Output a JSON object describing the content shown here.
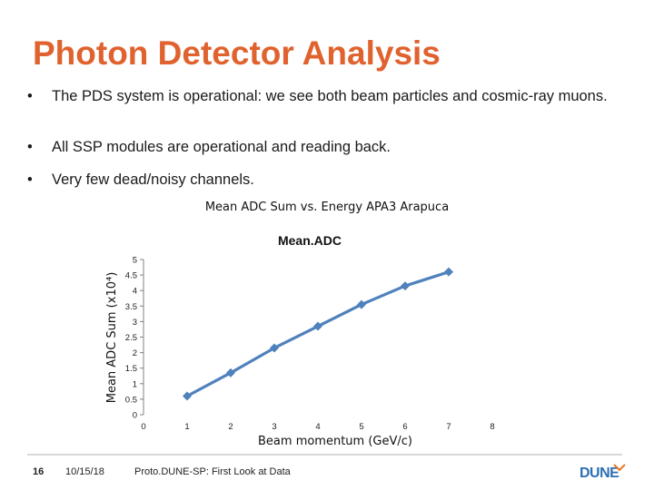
{
  "slide": {
    "title": "Photon Detector Analysis",
    "bullets": [
      "The PDS system is operational: we see both beam particles and cosmic-ray muons.",
      "All SSP modules are operational and reading back.",
      "Very few dead/noisy channels."
    ],
    "bullet_symbol": "•",
    "chart_caption": "Mean ADC Sum vs. Energy APA3 Arapuca"
  },
  "footer": {
    "page_number": "16",
    "date": "10/15/18",
    "text": "Proto.DUNE-SP: First Look at Data",
    "logo_text": "DUNE"
  },
  "colors": {
    "title": "#e0622e",
    "series": "#4f81bd",
    "logo_blue": "#2e6fb3",
    "logo_orange": "#e87722"
  },
  "chart_data": {
    "type": "line",
    "title": "Mean.ADC",
    "xlabel": "Beam momentum (GeV/c)",
    "ylabel": "Mean ADC Sum (x10⁴)",
    "xlim": [
      0,
      8
    ],
    "ylim": [
      0,
      5
    ],
    "xticks": [
      "0",
      "1",
      "2",
      "3",
      "4",
      "5",
      "6",
      "7",
      "8"
    ],
    "yticks": [
      "0",
      "0.5",
      "1",
      "1.5",
      "2",
      "2.5",
      "3",
      "3.5",
      "4",
      "4.5",
      "5"
    ],
    "grid": false,
    "legend": "none",
    "series": [
      {
        "x": [
          1,
          2,
          3,
          4,
          5,
          6,
          7
        ],
        "values": [
          0.6,
          1.35,
          2.15,
          2.85,
          3.55,
          4.15,
          4.6
        ]
      }
    ]
  }
}
